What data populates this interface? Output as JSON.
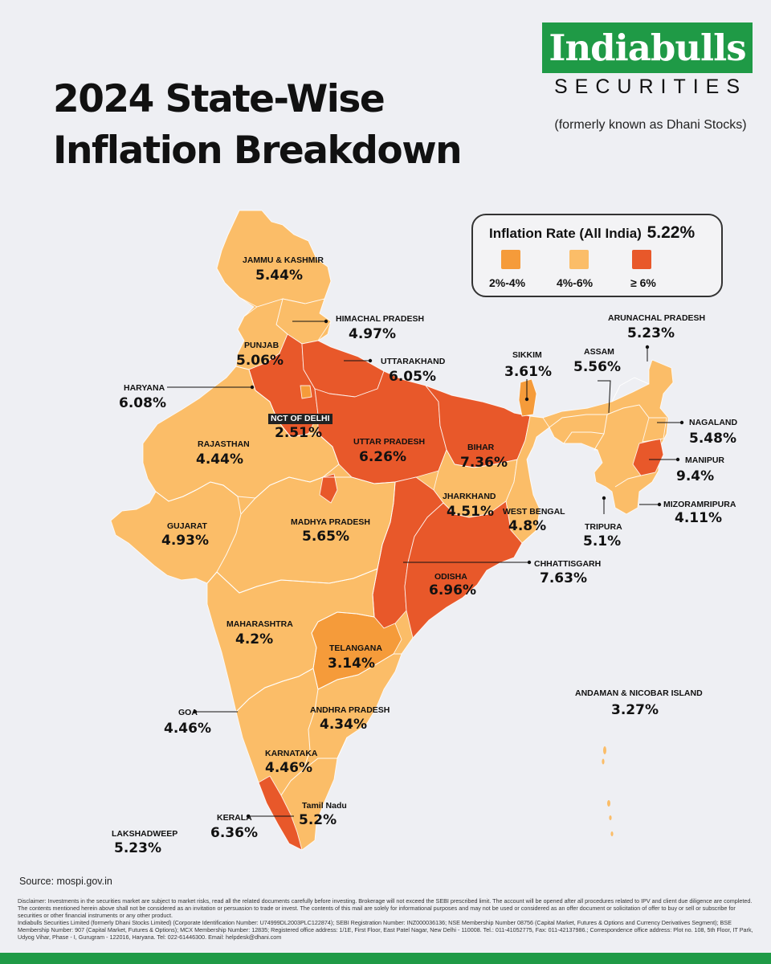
{
  "title": {
    "line1": "2024 State-Wise",
    "line2": "Inflation Breakdown"
  },
  "brand": {
    "name": "Indiabulls",
    "subtitle": "SECURITIES",
    "formerly": "(formerly known as Dhani Stocks)",
    "color": "#1f9a46"
  },
  "legend": {
    "title": "Inflation Rate (All India)",
    "all_india_rate": "5.22%",
    "bins": [
      {
        "label": "2%-4%",
        "color": "#f59b3a"
      },
      {
        "label": "4%-6%",
        "color": "#fbbd68"
      },
      {
        "label": "≥ 6%",
        "color": "#e8582a"
      }
    ]
  },
  "chart_data": {
    "type": "map",
    "unit": "%",
    "regions": [
      {
        "name": "JAMMU & KASHMIR",
        "label": "5.44%",
        "value": 5.44
      },
      {
        "name": "HIMACHAL PRADESH",
        "label": "4.97%",
        "value": 4.97
      },
      {
        "name": "PUNJAB",
        "label": "5.06%",
        "value": 5.06
      },
      {
        "name": "UTTARAKHAND",
        "label": "6.05%",
        "value": 6.05
      },
      {
        "name": "HARYANA",
        "label": "6.08%",
        "value": 6.08
      },
      {
        "name": "NCT OF DELHI",
        "label": "2.51%",
        "value": 2.51
      },
      {
        "name": "RAJASTHAN",
        "label": "4.44%",
        "value": 4.44
      },
      {
        "name": "UTTAR PRADESH",
        "label": "6.26%",
        "value": 6.26
      },
      {
        "name": "BIHAR",
        "label": "7.36%",
        "value": 7.36
      },
      {
        "name": "SIKKIM",
        "label": "3.61%",
        "value": 3.61
      },
      {
        "name": "ARUNACHAL PRADESH",
        "label": "5.23%",
        "value": 5.23
      },
      {
        "name": "ASSAM",
        "label": "5.56%",
        "value": 5.56
      },
      {
        "name": "NAGALAND",
        "label": "5.48%",
        "value": 5.48
      },
      {
        "name": "MANIPUR",
        "label": "9.4%",
        "value": 9.4
      },
      {
        "name": "MIZORAMRIPURA",
        "label": "4.11%",
        "value": 4.11
      },
      {
        "name": "TRIPURA",
        "label": "5.1%",
        "value": 5.1
      },
      {
        "name": "GUJARAT",
        "label": "4.93%",
        "value": 4.93
      },
      {
        "name": "MADHYA PRADESH",
        "label": "5.65%",
        "value": 5.65
      },
      {
        "name": "JHARKHAND",
        "label": "4.51%",
        "value": 4.51
      },
      {
        "name": "WEST BENGAL",
        "label": "4.8%",
        "value": 4.8
      },
      {
        "name": "CHHATTISGARH",
        "label": "7.63%",
        "value": 7.63
      },
      {
        "name": "ODISHA",
        "label": "6.96%",
        "value": 6.96
      },
      {
        "name": "MAHARASHTRA",
        "label": "4.2%",
        "value": 4.2
      },
      {
        "name": "TELANGANA",
        "label": "3.14%",
        "value": 3.14
      },
      {
        "name": "ANDAMAN & NICOBAR ISLAND",
        "label": "3.27%",
        "value": 3.27
      },
      {
        "name": "GOA",
        "label": "4.46%",
        "value": 4.46
      },
      {
        "name": "ANDHRA PRADESH",
        "label": "4.34%",
        "value": 4.34
      },
      {
        "name": "KARNATAKA",
        "label": "4.46%",
        "value": 4.46
      },
      {
        "name": "KERALA",
        "label": "6.36%",
        "value": 6.36
      },
      {
        "name": "Tamil Nadu",
        "label": "5.2%",
        "value": 5.2
      },
      {
        "name": "LAKSHADWEEP",
        "label": "5.23%",
        "value": 5.23
      }
    ]
  },
  "footer": {
    "source": "Source: mospi.gov.in",
    "disclaimer_1": "Disclaimer: Investments in the securities market are subject to market risks, read all the related documents carefully before investing. Brokerage will not exceed the SEBI prescribed limit. The account will be opened after all procedures related to IPV and client due diligence are completed. The contents mentioned herein above shall not be considered as an invitation or persuasion to trade or invest. The contents of this mail are solely for informational purposes and may not be used or considered as an offer document or solicitation of offer to buy or sell or subscribe for securities or other financial instruments or any other product.",
    "disclaimer_2": "Indiabulls Securities Limited (formerly Dhani Stocks Limited) (Corporate Identification Number: U74999DL2003PLC122874); SEBI Registration Number: INZ000036136; NSE Membership Number 08756 (Capital Market, Futures & Options and Currency Derivatives Segment); BSE Membership Number: 907 (Capital Market, Futures & Options); MCX Membership Number: 12835; Registered office address: 1/1E, First Floor, East Patel Nagar, New Delhi - 110008. Tel.: 011-41052775, Fax: 011-42137986.; Correspondence office address: Plot no. 108, 5th Floor, IT Park, Udyog Vihar, Phase - I, Gurugram - 122016, Haryana. Tel: 022-61446300. Email: helpdesk@dhani.com"
  }
}
